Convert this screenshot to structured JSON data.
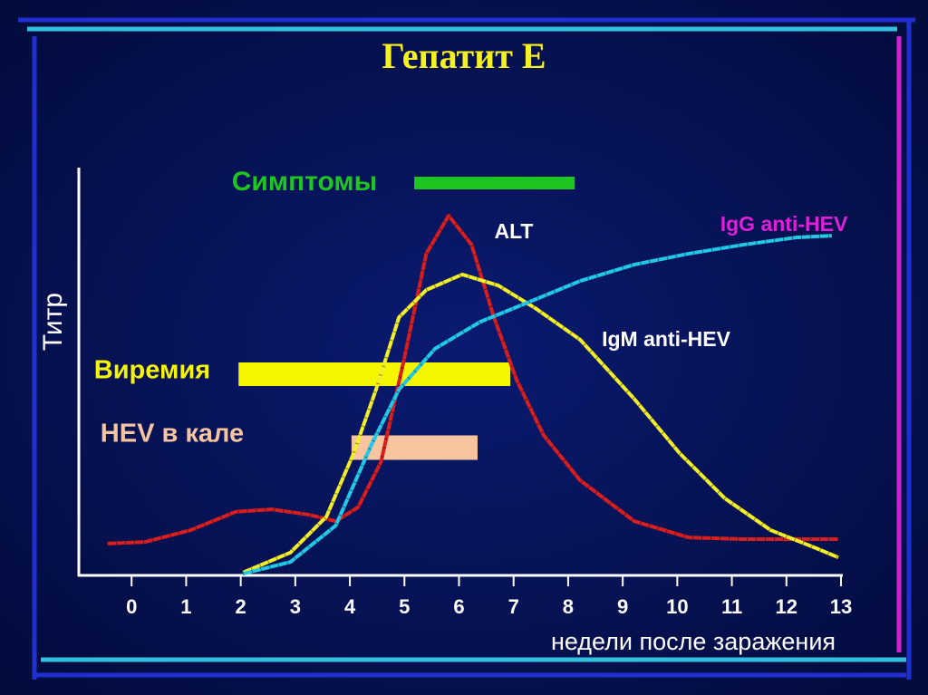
{
  "chart_data": {
    "type": "line",
    "title": "Гепатит Е",
    "y_label": "Титр",
    "x_label": "недели после заражения",
    "xlim": [
      -1,
      13
    ],
    "ylim": [
      0,
      100
    ],
    "xticks": [
      0,
      1,
      2,
      3,
      4,
      5,
      6,
      7,
      8,
      9,
      10,
      11,
      12,
      13
    ],
    "series": [
      {
        "name": "ALT",
        "color": "#d81e1e",
        "label_color": "#ffffff",
        "x": [
          -0.45,
          0.25,
          1.08,
          1.91,
          2.57,
          3.24,
          3.74,
          4.15,
          4.57,
          4.98,
          5.4,
          5.81,
          6.23,
          6.64,
          7.06,
          7.55,
          8.22,
          9.21,
          10.21,
          11.21,
          12.95
        ],
        "values": [
          7.8,
          8.2,
          11.1,
          15.6,
          16.2,
          14.9,
          13.3,
          16.7,
          27.8,
          52.2,
          78.9,
          88.2,
          81.1,
          63.3,
          47.8,
          34.4,
          23.3,
          13.3,
          9.3,
          8.9,
          8.9
        ]
      },
      {
        "name": "IgM anti-HEV",
        "color": "#f2ee2a",
        "label_color": "#ffffff",
        "x": [
          2.04,
          2.91,
          3.57,
          4.07,
          4.48,
          4.9,
          5.4,
          6.06,
          6.72,
          7.39,
          8.22,
          9.21,
          10.04,
          10.87,
          11.71,
          12.54,
          12.95
        ],
        "values": [
          0.7,
          5.6,
          14.4,
          30,
          45.6,
          63.3,
          70,
          73.8,
          71.1,
          65.6,
          57.8,
          43.3,
          30,
          18.9,
          11.1,
          6.7,
          4.4
        ]
      },
      {
        "name": "IgG anti-HEV",
        "color": "#22c8e8",
        "label_color": "#e020d8",
        "x": [
          2.04,
          2.91,
          3.74,
          4.4,
          4.9,
          5.56,
          6.39,
          7.22,
          8.22,
          9.21,
          10.21,
          11.21,
          12.2,
          12.83
        ],
        "values": [
          0.4,
          3.3,
          12.2,
          32.2,
          45.6,
          55.6,
          62.2,
          66.7,
          72.2,
          76.2,
          78.9,
          81.1,
          82.9,
          83.3
        ]
      }
    ],
    "ranges": [
      {
        "name": "Симптомы",
        "color": "#1ec51e",
        "start": 5.18,
        "end": 8.12
      },
      {
        "name": "Виремия",
        "color": "#f5f500",
        "start": 1.96,
        "end": 6.94
      },
      {
        "name": "HEV в кале",
        "color": "#f7c4a0",
        "start": 4.03,
        "end": 6.34
      }
    ]
  }
}
